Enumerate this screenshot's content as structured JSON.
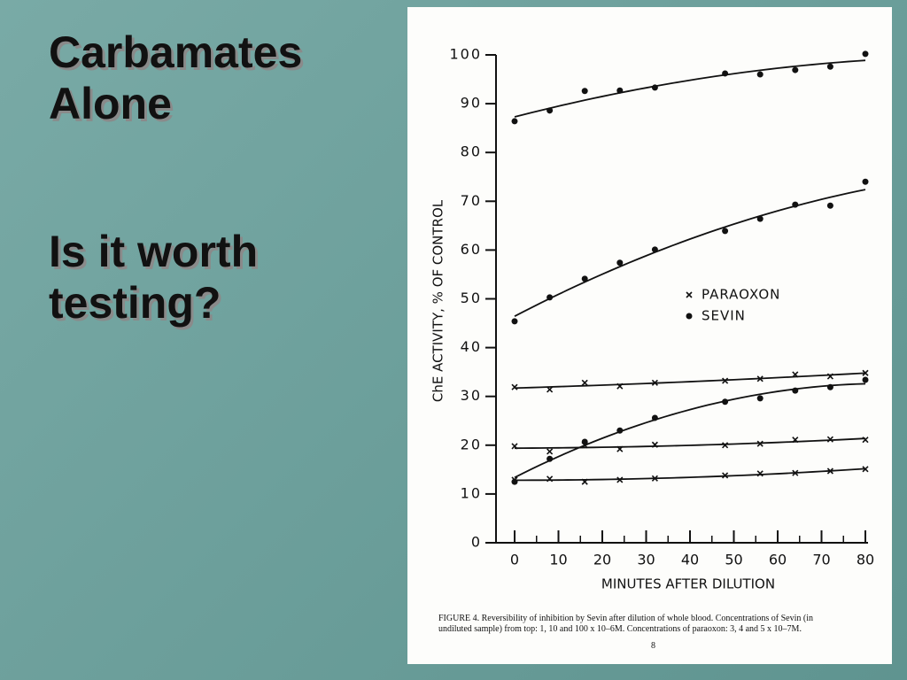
{
  "slide": {
    "title": "Carbamates Alone",
    "subtitle": "Is it worth testing?"
  },
  "chart_data": {
    "type": "scatter",
    "ylabel": "ChE ACTIVITY, % OF CONTROL",
    "xlabel": "MINUTES AFTER DILUTION",
    "xlim": [
      0,
      80
    ],
    "xticks": [
      0,
      10,
      20,
      30,
      40,
      50,
      60,
      70,
      80
    ],
    "ylim": [
      0,
      100
    ],
    "yticks": [
      0,
      10,
      20,
      30,
      40,
      50,
      60,
      70,
      80,
      90,
      100
    ],
    "color": "#111111",
    "legend": [
      {
        "name": "PARAOXON",
        "marker": "x"
      },
      {
        "name": "SEVIN",
        "marker": "dot"
      }
    ],
    "series": [
      {
        "marker": "dot",
        "x": [
          0,
          8,
          16,
          24,
          32,
          48,
          56,
          64,
          72,
          80
        ],
        "values": [
          86.4,
          88.6,
          92.6,
          92.7,
          93.3,
          96.2,
          96.0,
          96.9,
          97.6,
          100.2
        ]
      },
      {
        "marker": "dot",
        "x": [
          0,
          8,
          16,
          24,
          32,
          48,
          56,
          64,
          72,
          80
        ],
        "values": [
          45.4,
          50.3,
          54.1,
          57.4,
          60.1,
          63.9,
          66.4,
          69.3,
          69.1,
          74.0
        ]
      },
      {
        "marker": "dot",
        "x": [
          0,
          8,
          16,
          24,
          32,
          48,
          56,
          64,
          72,
          80
        ],
        "values": [
          12.5,
          17.2,
          20.7,
          23.0,
          25.6,
          28.9,
          29.6,
          31.2,
          31.9,
          33.4
        ]
      },
      {
        "marker": "x",
        "x": [
          0,
          8,
          16,
          24,
          32,
          48,
          56,
          64,
          72,
          80
        ],
        "values": [
          31.9,
          31.4,
          32.8,
          32.1,
          32.8,
          33.2,
          33.6,
          34.5,
          34.1,
          34.8
        ]
      },
      {
        "marker": "x",
        "x": [
          0,
          8,
          16,
          24,
          32,
          48,
          56,
          64,
          72,
          80
        ],
        "values": [
          19.8,
          18.7,
          20.0,
          19.2,
          20.1,
          20.0,
          20.3,
          21.1,
          21.2,
          21.1
        ]
      },
      {
        "marker": "x",
        "x": [
          0,
          8,
          16,
          24,
          32,
          48,
          56,
          64,
          72,
          80
        ],
        "values": [
          12.9,
          13.1,
          12.5,
          12.9,
          13.2,
          13.8,
          14.2,
          14.3,
          14.7,
          15.1
        ]
      }
    ],
    "caption": "FIGURE 4. Reversibility of inhibition by Sevin after dilution of whole blood. Concentrations of Sevin (in undiluted sample) from top: 1, 10 and 100 x 10–6M. Concentrations of paraoxon: 3, 4 and 5 x 10–7M.",
    "page": "8"
  }
}
